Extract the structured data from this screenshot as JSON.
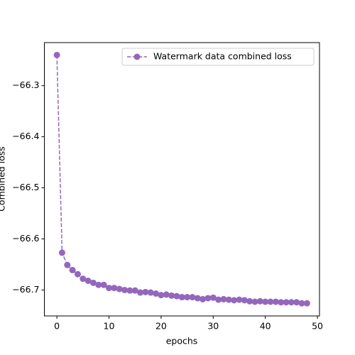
{
  "chart_data": {
    "type": "line",
    "xlabel": "epochs",
    "ylabel": "Combined loss",
    "x": [
      0,
      1,
      2,
      3,
      4,
      5,
      6,
      7,
      8,
      9,
      10,
      11,
      12,
      13,
      14,
      15,
      16,
      17,
      18,
      19,
      20,
      21,
      22,
      23,
      24,
      25,
      26,
      27,
      28,
      29,
      30,
      31,
      32,
      33,
      34,
      35,
      36,
      37,
      38,
      39,
      40,
      41,
      42,
      43,
      44,
      45,
      46,
      47,
      48
    ],
    "series": [
      {
        "name": "Watermark data combined loss",
        "color": "#9467bd",
        "values": [
          -66.24,
          -66.627,
          -66.651,
          -66.661,
          -66.669,
          -66.678,
          -66.682,
          -66.686,
          -66.69,
          -66.69,
          -66.696,
          -66.696,
          -66.698,
          -66.7,
          -66.701,
          -66.701,
          -66.705,
          -66.704,
          -66.705,
          -66.707,
          -66.71,
          -66.709,
          -66.711,
          -66.712,
          -66.714,
          -66.714,
          -66.714,
          -66.716,
          -66.718,
          -66.716,
          -66.715,
          -66.719,
          -66.718,
          -66.719,
          -66.72,
          -66.719,
          -66.72,
          -66.722,
          -66.723,
          -66.722,
          -66.723,
          -66.723,
          -66.723,
          -66.724,
          -66.724,
          -66.724,
          -66.724,
          -66.726,
          -66.726
        ]
      }
    ],
    "xlim": [
      -2.4,
      50.4
    ],
    "xticks": [
      0,
      10,
      20,
      30,
      40,
      50
    ],
    "ylim": [
      -66.7508,
      -66.2157
    ],
    "yticks": [
      {
        "value": -66.7,
        "label": "−66.7"
      },
      {
        "value": -66.6,
        "label": "−66.6"
      },
      {
        "value": -66.5,
        "label": "−66.5"
      },
      {
        "value": -66.4,
        "label": "−66.4"
      },
      {
        "value": -66.3,
        "label": "−66.3"
      }
    ],
    "line_style": "dashed",
    "marker": "circle",
    "legend": "upper right"
  }
}
